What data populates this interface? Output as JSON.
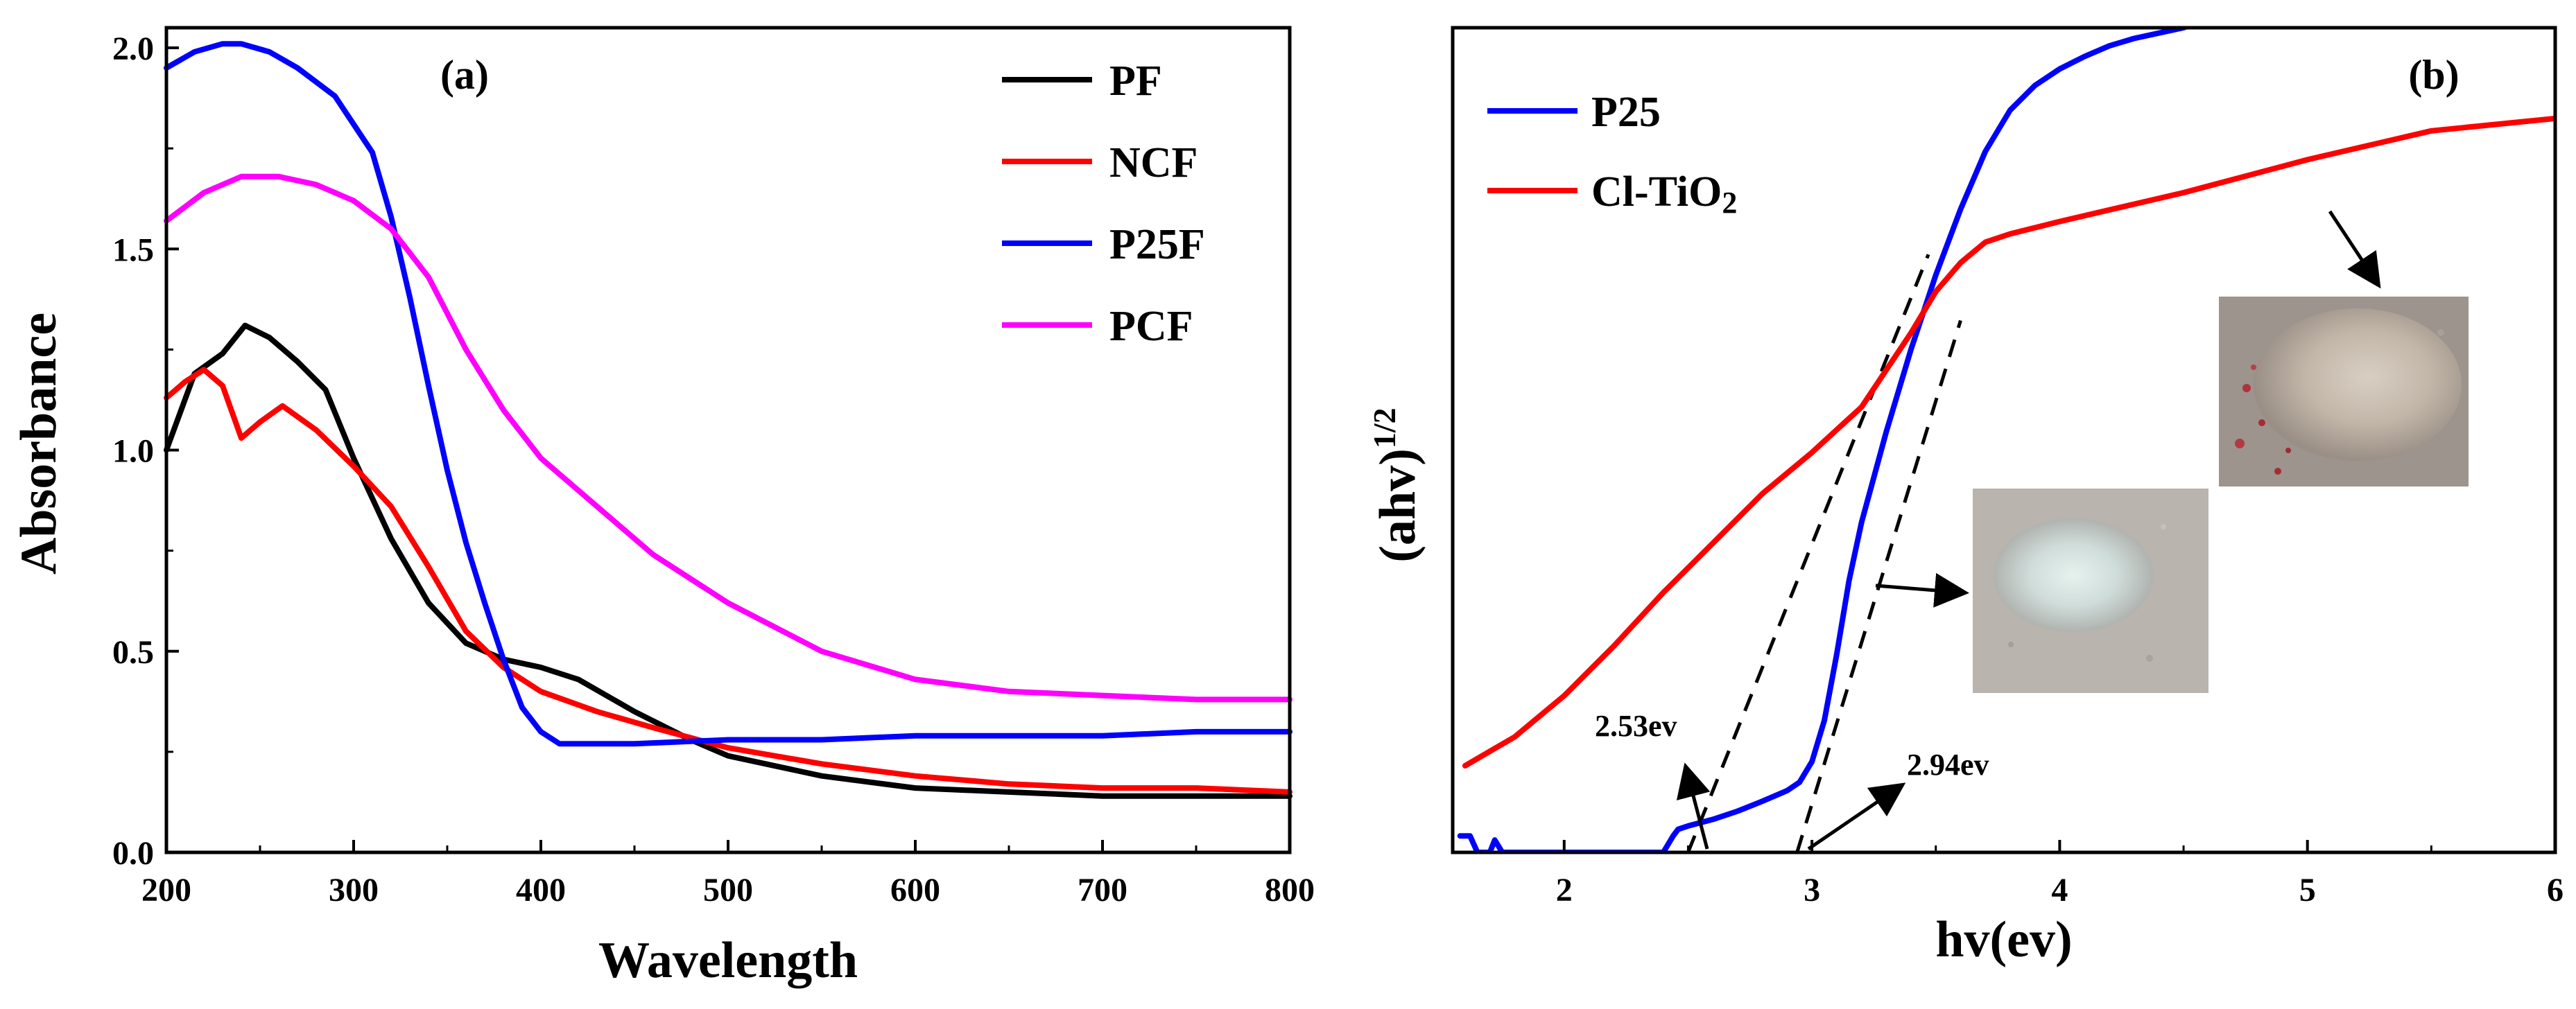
{
  "chart_data": [
    {
      "type": "line",
      "panel_label": "(a)",
      "xlabel": "Wavelength",
      "ylabel": "Absorbance",
      "xlim": [
        200,
        800
      ],
      "ylim": [
        0,
        2.05
      ],
      "xticks": [
        200,
        300,
        400,
        500,
        600,
        700,
        800
      ],
      "xtick_labels": [
        "200",
        "300",
        "400",
        "500",
        "600",
        "700",
        "800"
      ],
      "yticks": [
        0,
        0.5,
        1.0,
        1.5,
        2.0
      ],
      "ytick_labels": [
        "0.0",
        "0.5",
        "1.0",
        "1.5",
        "2.0"
      ],
      "legend_position": "top-right",
      "series": [
        {
          "name": "PF",
          "color": "#000000",
          "x": [
            200,
            215,
            230,
            242,
            255,
            270,
            285,
            300,
            320,
            340,
            360,
            380,
            400,
            420,
            450,
            480,
            500,
            550,
            600,
            650,
            700,
            750,
            800
          ],
          "y": [
            1.0,
            1.19,
            1.24,
            1.31,
            1.28,
            1.22,
            1.15,
            0.98,
            0.78,
            0.62,
            0.52,
            0.48,
            0.46,
            0.43,
            0.35,
            0.28,
            0.24,
            0.19,
            0.16,
            0.15,
            0.14,
            0.14,
            0.14
          ]
        },
        {
          "name": "NCF",
          "color": "#ff0000",
          "x": [
            200,
            210,
            220,
            230,
            240,
            250,
            262,
            280,
            300,
            320,
            340,
            360,
            380,
            400,
            430,
            460,
            500,
            550,
            600,
            650,
            700,
            750,
            800
          ],
          "y": [
            1.13,
            1.17,
            1.2,
            1.16,
            1.03,
            1.07,
            1.11,
            1.05,
            0.96,
            0.86,
            0.71,
            0.55,
            0.46,
            0.4,
            0.35,
            0.31,
            0.26,
            0.22,
            0.19,
            0.17,
            0.16,
            0.16,
            0.15
          ]
        },
        {
          "name": "P25F",
          "color": "#0000ff",
          "x": [
            200,
            215,
            230,
            240,
            255,
            270,
            290,
            310,
            320,
            330,
            340,
            350,
            360,
            370,
            380,
            390,
            400,
            410,
            420,
            430,
            450,
            500,
            550,
            600,
            650,
            700,
            750,
            800
          ],
          "y": [
            1.95,
            1.99,
            2.01,
            2.01,
            1.99,
            1.95,
            1.88,
            1.74,
            1.58,
            1.38,
            1.16,
            0.95,
            0.77,
            0.62,
            0.48,
            0.36,
            0.3,
            0.27,
            0.27,
            0.27,
            0.27,
            0.28,
            0.28,
            0.29,
            0.29,
            0.29,
            0.3,
            0.3
          ]
        },
        {
          "name": "PCF",
          "color": "#ff00ff",
          "x": [
            200,
            220,
            240,
            260,
            280,
            300,
            320,
            340,
            360,
            380,
            400,
            430,
            460,
            500,
            550,
            600,
            650,
            700,
            750,
            800
          ],
          "y": [
            1.57,
            1.64,
            1.68,
            1.68,
            1.66,
            1.62,
            1.55,
            1.43,
            1.25,
            1.1,
            0.98,
            0.86,
            0.74,
            0.62,
            0.5,
            0.43,
            0.4,
            0.39,
            0.38,
            0.38
          ]
        }
      ]
    },
    {
      "type": "line",
      "panel_label": "(b)",
      "xlabel": "hv(ev)",
      "ylabel": "(ahv)",
      "ylabel_superscript": "1/2",
      "xlim": [
        1.55,
        6.0
      ],
      "ylim": [
        0,
        10
      ],
      "xticks": [
        2,
        3,
        4,
        5,
        6
      ],
      "xtick_labels": [
        "2",
        "3",
        "4",
        "5",
        "6"
      ],
      "legend_position": "top-left",
      "series": [
        {
          "name": "P25",
          "color": "#0000ff",
          "x": [
            1.58,
            1.62,
            1.65,
            1.7,
            1.72,
            1.75,
            1.8,
            2.0,
            2.4,
            2.44,
            2.46,
            2.5,
            2.6,
            2.7,
            2.8,
            2.9,
            2.95,
            3.0,
            3.05,
            3.1,
            3.15,
            3.2,
            3.3,
            3.4,
            3.5,
            3.6,
            3.7,
            3.8,
            3.9,
            4.0,
            4.1,
            4.2,
            4.3,
            4.5,
            4.6
          ],
          "y": [
            0.2,
            0.2,
            0.0,
            0.0,
            0.15,
            0.0,
            0.0,
            0.0,
            0.0,
            0.2,
            0.28,
            0.32,
            0.4,
            0.5,
            0.62,
            0.75,
            0.85,
            1.1,
            1.6,
            2.4,
            3.3,
            4.0,
            5.1,
            6.1,
            7.0,
            7.8,
            8.5,
            9.0,
            9.3,
            9.5,
            9.65,
            9.78,
            9.87,
            10.0,
            10.1
          ]
        },
        {
          "name": "Cl-TiO",
          "name_subscript": "2",
          "color": "#ff0000",
          "x": [
            1.6,
            1.8,
            2.0,
            2.2,
            2.4,
            2.6,
            2.8,
            3.0,
            3.2,
            3.3,
            3.4,
            3.5,
            3.6,
            3.7,
            3.8,
            4.0,
            4.5,
            5.0,
            5.5,
            6.0
          ],
          "y": [
            1.05,
            1.4,
            1.9,
            2.5,
            3.15,
            3.75,
            4.35,
            4.85,
            5.4,
            5.85,
            6.3,
            6.8,
            7.15,
            7.4,
            7.5,
            7.65,
            8.0,
            8.4,
            8.75,
            8.9
          ]
        }
      ],
      "tangent_lines": [
        {
          "x": [
            2.5,
            3.47
          ],
          "y": [
            0.0,
            7.25
          ]
        },
        {
          "x": [
            2.94,
            3.6
          ],
          "y": [
            0.0,
            6.45
          ]
        }
      ],
      "annotations": [
        {
          "text": "2.53ev"
        },
        {
          "text": "2.94ev"
        }
      ],
      "inset_images": [
        {
          "name": "cl-tio2-powder-photo",
          "description_color": "#b8ada2"
        },
        {
          "name": "p25-powder-photo",
          "description_color": "#c8d0cf"
        }
      ]
    }
  ]
}
